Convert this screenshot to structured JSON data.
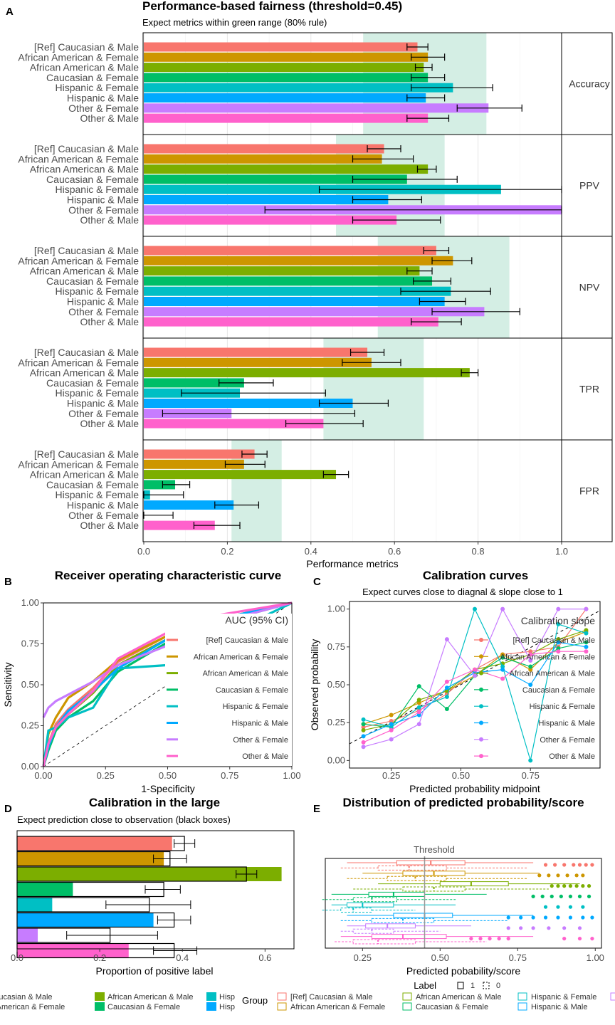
{
  "colors": [
    "#F8766D",
    "#CD9600",
    "#7CAE00",
    "#00BE67",
    "#00BFC4",
    "#00A9FF",
    "#C77CFF",
    "#FF61CC"
  ],
  "groups": [
    "[Ref] Caucasian & Male",
    "African American & Female",
    "African American & Male",
    "Caucasian & Female",
    "Hispanic & Female",
    "Hispanic & Male",
    "Other & Female",
    "Other & Male"
  ],
  "chart_data": [
    {
      "panel": "A",
      "type": "bar",
      "title": "Performance-based fairness (threshold=0.45)",
      "subtitle": "Expect metrics within green range (80% rule)",
      "xlabel": "Performance metrics",
      "xlim": [
        0,
        1
      ],
      "xticks": [
        "0.0",
        "0.2",
        "0.4",
        "0.6",
        "0.8",
        "1.0"
      ],
      "facets": [
        {
          "metric": "Accuracy",
          "green": [
            0.525,
            0.82
          ],
          "values": [
            0.655,
            0.68,
            0.67,
            0.68,
            0.74,
            0.675,
            0.825,
            0.68
          ],
          "lo": [
            0.63,
            0.64,
            0.65,
            0.64,
            0.64,
            0.63,
            0.75,
            0.63
          ],
          "hi": [
            0.68,
            0.72,
            0.69,
            0.72,
            0.835,
            0.72,
            0.905,
            0.73
          ]
        },
        {
          "metric": "PPV",
          "green": [
            0.46,
            0.72
          ],
          "values": [
            0.575,
            0.57,
            0.68,
            0.63,
            0.855,
            0.585,
            1.0,
            0.605
          ],
          "lo": [
            0.535,
            0.5,
            0.655,
            0.5,
            0.42,
            0.5,
            0.29,
            0.5
          ],
          "hi": [
            0.615,
            0.645,
            0.7,
            0.75,
            1.0,
            0.665,
            1.0,
            0.71
          ]
        },
        {
          "metric": "NPV",
          "green": [
            0.56,
            0.875
          ],
          "values": [
            0.7,
            0.74,
            0.66,
            0.69,
            0.735,
            0.72,
            0.815,
            0.705
          ],
          "lo": [
            0.67,
            0.69,
            0.63,
            0.645,
            0.615,
            0.66,
            0.69,
            0.64
          ],
          "hi": [
            0.73,
            0.785,
            0.69,
            0.735,
            0.83,
            0.77,
            0.9,
            0.76
          ]
        },
        {
          "metric": "TPR",
          "green": [
            0.43,
            0.67
          ],
          "values": [
            0.535,
            0.545,
            0.78,
            0.24,
            0.23,
            0.5,
            0.21,
            0.43
          ],
          "lo": [
            0.495,
            0.475,
            0.76,
            0.18,
            0.09,
            0.42,
            0.045,
            0.34
          ],
          "hi": [
            0.575,
            0.615,
            0.8,
            0.31,
            0.435,
            0.585,
            0.505,
            0.525
          ]
        },
        {
          "metric": "FPR",
          "green": [
            0.21,
            0.33
          ],
          "values": [
            0.265,
            0.24,
            0.46,
            0.075,
            0.015,
            0.215,
            0.0,
            0.17
          ],
          "lo": [
            0.235,
            0.195,
            0.43,
            0.045,
            0.0,
            0.17,
            0.0,
            0.12
          ],
          "hi": [
            0.295,
            0.29,
            0.49,
            0.11,
            0.095,
            0.275,
            0.07,
            0.23
          ]
        }
      ]
    },
    {
      "panel": "B",
      "type": "line",
      "title": "Receiver operating characteristic curve",
      "xlabel": "1-Specificity",
      "ylabel": "Sensitivity",
      "xlim": [
        0,
        1
      ],
      "ylim": [
        0,
        1
      ],
      "xticks": [
        "0.00",
        "0.25",
        "0.50",
        "0.75",
        "1.00"
      ],
      "yticks": [
        "0.00",
        "0.25",
        "0.50",
        "0.75",
        "1.00"
      ],
      "legend_title": "AUC (95% CI)",
      "series": [
        {
          "x": [
            0,
            0.02,
            0.05,
            0.1,
            0.2,
            0.3,
            0.5,
            0.7,
            1
          ],
          "y": [
            0,
            0.14,
            0.26,
            0.35,
            0.48,
            0.64,
            0.8,
            0.9,
            1
          ]
        },
        {
          "x": [
            0,
            0.02,
            0.05,
            0.1,
            0.2,
            0.3,
            0.5,
            0.7,
            1
          ],
          "y": [
            0,
            0.2,
            0.3,
            0.42,
            0.52,
            0.65,
            0.8,
            0.9,
            1
          ]
        },
        {
          "x": [
            0,
            0.02,
            0.05,
            0.1,
            0.2,
            0.3,
            0.5,
            0.7,
            1
          ],
          "y": [
            0,
            0.12,
            0.24,
            0.32,
            0.45,
            0.62,
            0.78,
            0.9,
            1
          ]
        },
        {
          "x": [
            0,
            0.02,
            0.05,
            0.1,
            0.2,
            0.3,
            0.5,
            0.7,
            1
          ],
          "y": [
            0,
            0.1,
            0.22,
            0.3,
            0.4,
            0.58,
            0.76,
            0.88,
            1
          ]
        },
        {
          "x": [
            0,
            0.02,
            0.05,
            0.1,
            0.2,
            0.3,
            0.5,
            0.7,
            1
          ],
          "y": [
            0,
            0.22,
            0.24,
            0.3,
            0.36,
            0.6,
            0.62,
            0.78,
            1
          ]
        },
        {
          "x": [
            0,
            0.02,
            0.05,
            0.1,
            0.2,
            0.3,
            0.5,
            0.7,
            1
          ],
          "y": [
            0,
            0.12,
            0.24,
            0.34,
            0.46,
            0.6,
            0.78,
            0.9,
            1
          ]
        },
        {
          "x": [
            0,
            0.02,
            0.05,
            0.1,
            0.2,
            0.3,
            0.5,
            0.7,
            1
          ],
          "y": [
            0.3,
            0.36,
            0.4,
            0.44,
            0.52,
            0.62,
            0.74,
            0.88,
            1
          ]
        },
        {
          "x": [
            0,
            0.02,
            0.05,
            0.1,
            0.2,
            0.3,
            0.5,
            0.6,
            1
          ],
          "y": [
            0,
            0.14,
            0.24,
            0.32,
            0.46,
            0.66,
            0.82,
            0.9,
            1
          ]
        }
      ]
    },
    {
      "panel": "C",
      "type": "line",
      "title": "Calibration curves",
      "subtitle": "Expect curves close to diagnal & slope close to 1",
      "xlabel": "Predicted probability midpoint",
      "ylabel": "Observed probability",
      "xlim": [
        0.1,
        1.0
      ],
      "ylim": [
        -0.05,
        1.05
      ],
      "xticks": [
        "0.25",
        "0.50",
        "0.75"
      ],
      "yticks": [
        "0.00",
        "0.25",
        "0.50",
        "0.75",
        "1.00"
      ],
      "legend_title": "Calibration slope",
      "x": [
        0.15,
        0.25,
        0.35,
        0.45,
        0.55,
        0.65,
        0.75,
        0.85,
        0.95
      ],
      "series": [
        {
          "y": [
            0.22,
            0.26,
            0.33,
            0.44,
            0.6,
            0.7,
            0.72,
            0.75,
            1.0
          ]
        },
        {
          "y": [
            0.24,
            0.3,
            0.38,
            0.46,
            0.56,
            0.7,
            0.6,
            0.78,
            0.85
          ]
        },
        {
          "y": [
            0.2,
            0.24,
            0.4,
            0.46,
            0.6,
            0.64,
            0.7,
            0.8,
            0.86
          ]
        },
        {
          "y": [
            0.24,
            0.22,
            0.49,
            0.34,
            0.56,
            0.68,
            0.62,
            0.74,
            0.78
          ]
        },
        {
          "y": [
            0.27,
            0.22,
            0.35,
            0.42,
            1.0,
            0.62,
            0.0,
            0.9,
            0.84
          ]
        },
        {
          "y": [
            0.16,
            0.24,
            0.3,
            0.48,
            0.58,
            0.6,
            0.5,
            0.78,
            0.75
          ]
        },
        {
          "y": [
            0.09,
            0.14,
            0.24,
            0.8,
            0.56,
            1.0,
            0.66,
            1.0,
            1.0
          ]
        },
        {
          "y": [
            0.12,
            0.2,
            0.32,
            0.52,
            0.6,
            0.54,
            0.7,
            0.72,
            0.72
          ]
        }
      ]
    },
    {
      "panel": "D",
      "type": "bar",
      "title": "Calibration in the large",
      "subtitle": "Expect prediction close to observation (black boxes)",
      "xlabel": "Proportion of positive label",
      "xlim": [
        0,
        0.67
      ],
      "xticks": [
        "0.0",
        "0.2",
        "0.4",
        "0.6"
      ],
      "observed": [
        0.375,
        0.355,
        0.64,
        0.135,
        0.085,
        0.33,
        0.05,
        0.27
      ],
      "predicted": [
        0.405,
        0.37,
        0.555,
        0.355,
        0.32,
        0.38,
        0.225,
        0.38
      ],
      "lo": [
        0.38,
        0.33,
        0.53,
        0.31,
        0.215,
        0.34,
        0.12,
        0.33
      ],
      "hi": [
        0.43,
        0.41,
        0.58,
        0.395,
        0.42,
        0.42,
        0.34,
        0.435
      ]
    },
    {
      "panel": "E",
      "type": "box",
      "title": "Distribution of predicted probability/score",
      "xlabel": "Predicted pobability/score",
      "xlim": [
        0.13,
        1.02
      ],
      "xticks": [
        "0.25",
        "0.50",
        "0.75",
        "1.00"
      ],
      "threshold": 0.45,
      "threshold_label": "Threshold",
      "boxes": [
        [
          0.2,
          0.36,
          0.47,
          0.58,
          0.8,
          0
        ],
        [
          0.18,
          0.3,
          0.4,
          0.52,
          0.78,
          1
        ],
        [
          0.25,
          0.38,
          0.48,
          0.58,
          0.82,
          0
        ],
        [
          0.2,
          0.33,
          0.42,
          0.52,
          0.78,
          1
        ],
        [
          0.3,
          0.5,
          0.6,
          0.72,
          0.95,
          0
        ],
        [
          0.22,
          0.38,
          0.48,
          0.58,
          0.85,
          1
        ],
        [
          0.15,
          0.27,
          0.35,
          0.45,
          0.65,
          0
        ],
        [
          0.12,
          0.22,
          0.28,
          0.36,
          0.55,
          1
        ],
        [
          0.15,
          0.2,
          0.25,
          0.35,
          0.55,
          0
        ],
        [
          0.12,
          0.18,
          0.22,
          0.28,
          0.42,
          1
        ],
        [
          0.2,
          0.35,
          0.45,
          0.54,
          0.8,
          0
        ],
        [
          0.18,
          0.28,
          0.38,
          0.48,
          0.72,
          1
        ],
        [
          0.2,
          0.26,
          0.33,
          0.42,
          0.6,
          0
        ],
        [
          0.18,
          0.22,
          0.28,
          0.35,
          0.5,
          1
        ],
        [
          0.18,
          0.28,
          0.38,
          0.52,
          0.8,
          0
        ],
        [
          0.16,
          0.22,
          0.3,
          0.42,
          0.65,
          1
        ]
      ],
      "outliers": [
        [
          0.84,
          0.87,
          0.9,
          0.93,
          0.95,
          0.97,
          0.99
        ],
        [
          0.82,
          0.85,
          0.88,
          0.91,
          0.94,
          0.96
        ],
        [
          0.86,
          0.88,
          0.9,
          0.92,
          0.94,
          0.96,
          0.98
        ],
        [
          0.8,
          0.83,
          0.86,
          0.89,
          0.92,
          0.95,
          0.98
        ],
        [
          0.84,
          0.88,
          0.92,
          0.96
        ],
        [
          0.72,
          0.76,
          0.8,
          0.84,
          0.88,
          0.92,
          0.96,
          0.99
        ],
        [
          0.72,
          0.76,
          0.8,
          0.85,
          0.9,
          0.95
        ],
        [
          0.6,
          0.63,
          0.66,
          0.69,
          0.72,
          0.9,
          0.95,
          0.99
        ]
      ],
      "label_legend_title": "Label",
      "label_levels": [
        "1",
        "0"
      ]
    }
  ],
  "panel_labels": [
    "A",
    "B",
    "C",
    "D",
    "E"
  ],
  "bottom_legend": {
    "fill_items": [
      "[Ref] Caucasian & Male",
      "African American & Female",
      "African American & Male",
      "Caucasian & Female",
      "Hisp",
      "Hisp"
    ],
    "group_title": "Group",
    "group_items": [
      "[Ref] Caucasian & Male",
      "African American & Female",
      "African American & Male",
      "Caucasian & Female",
      "Hispanic & Female",
      "Hispanic & Male"
    ]
  }
}
